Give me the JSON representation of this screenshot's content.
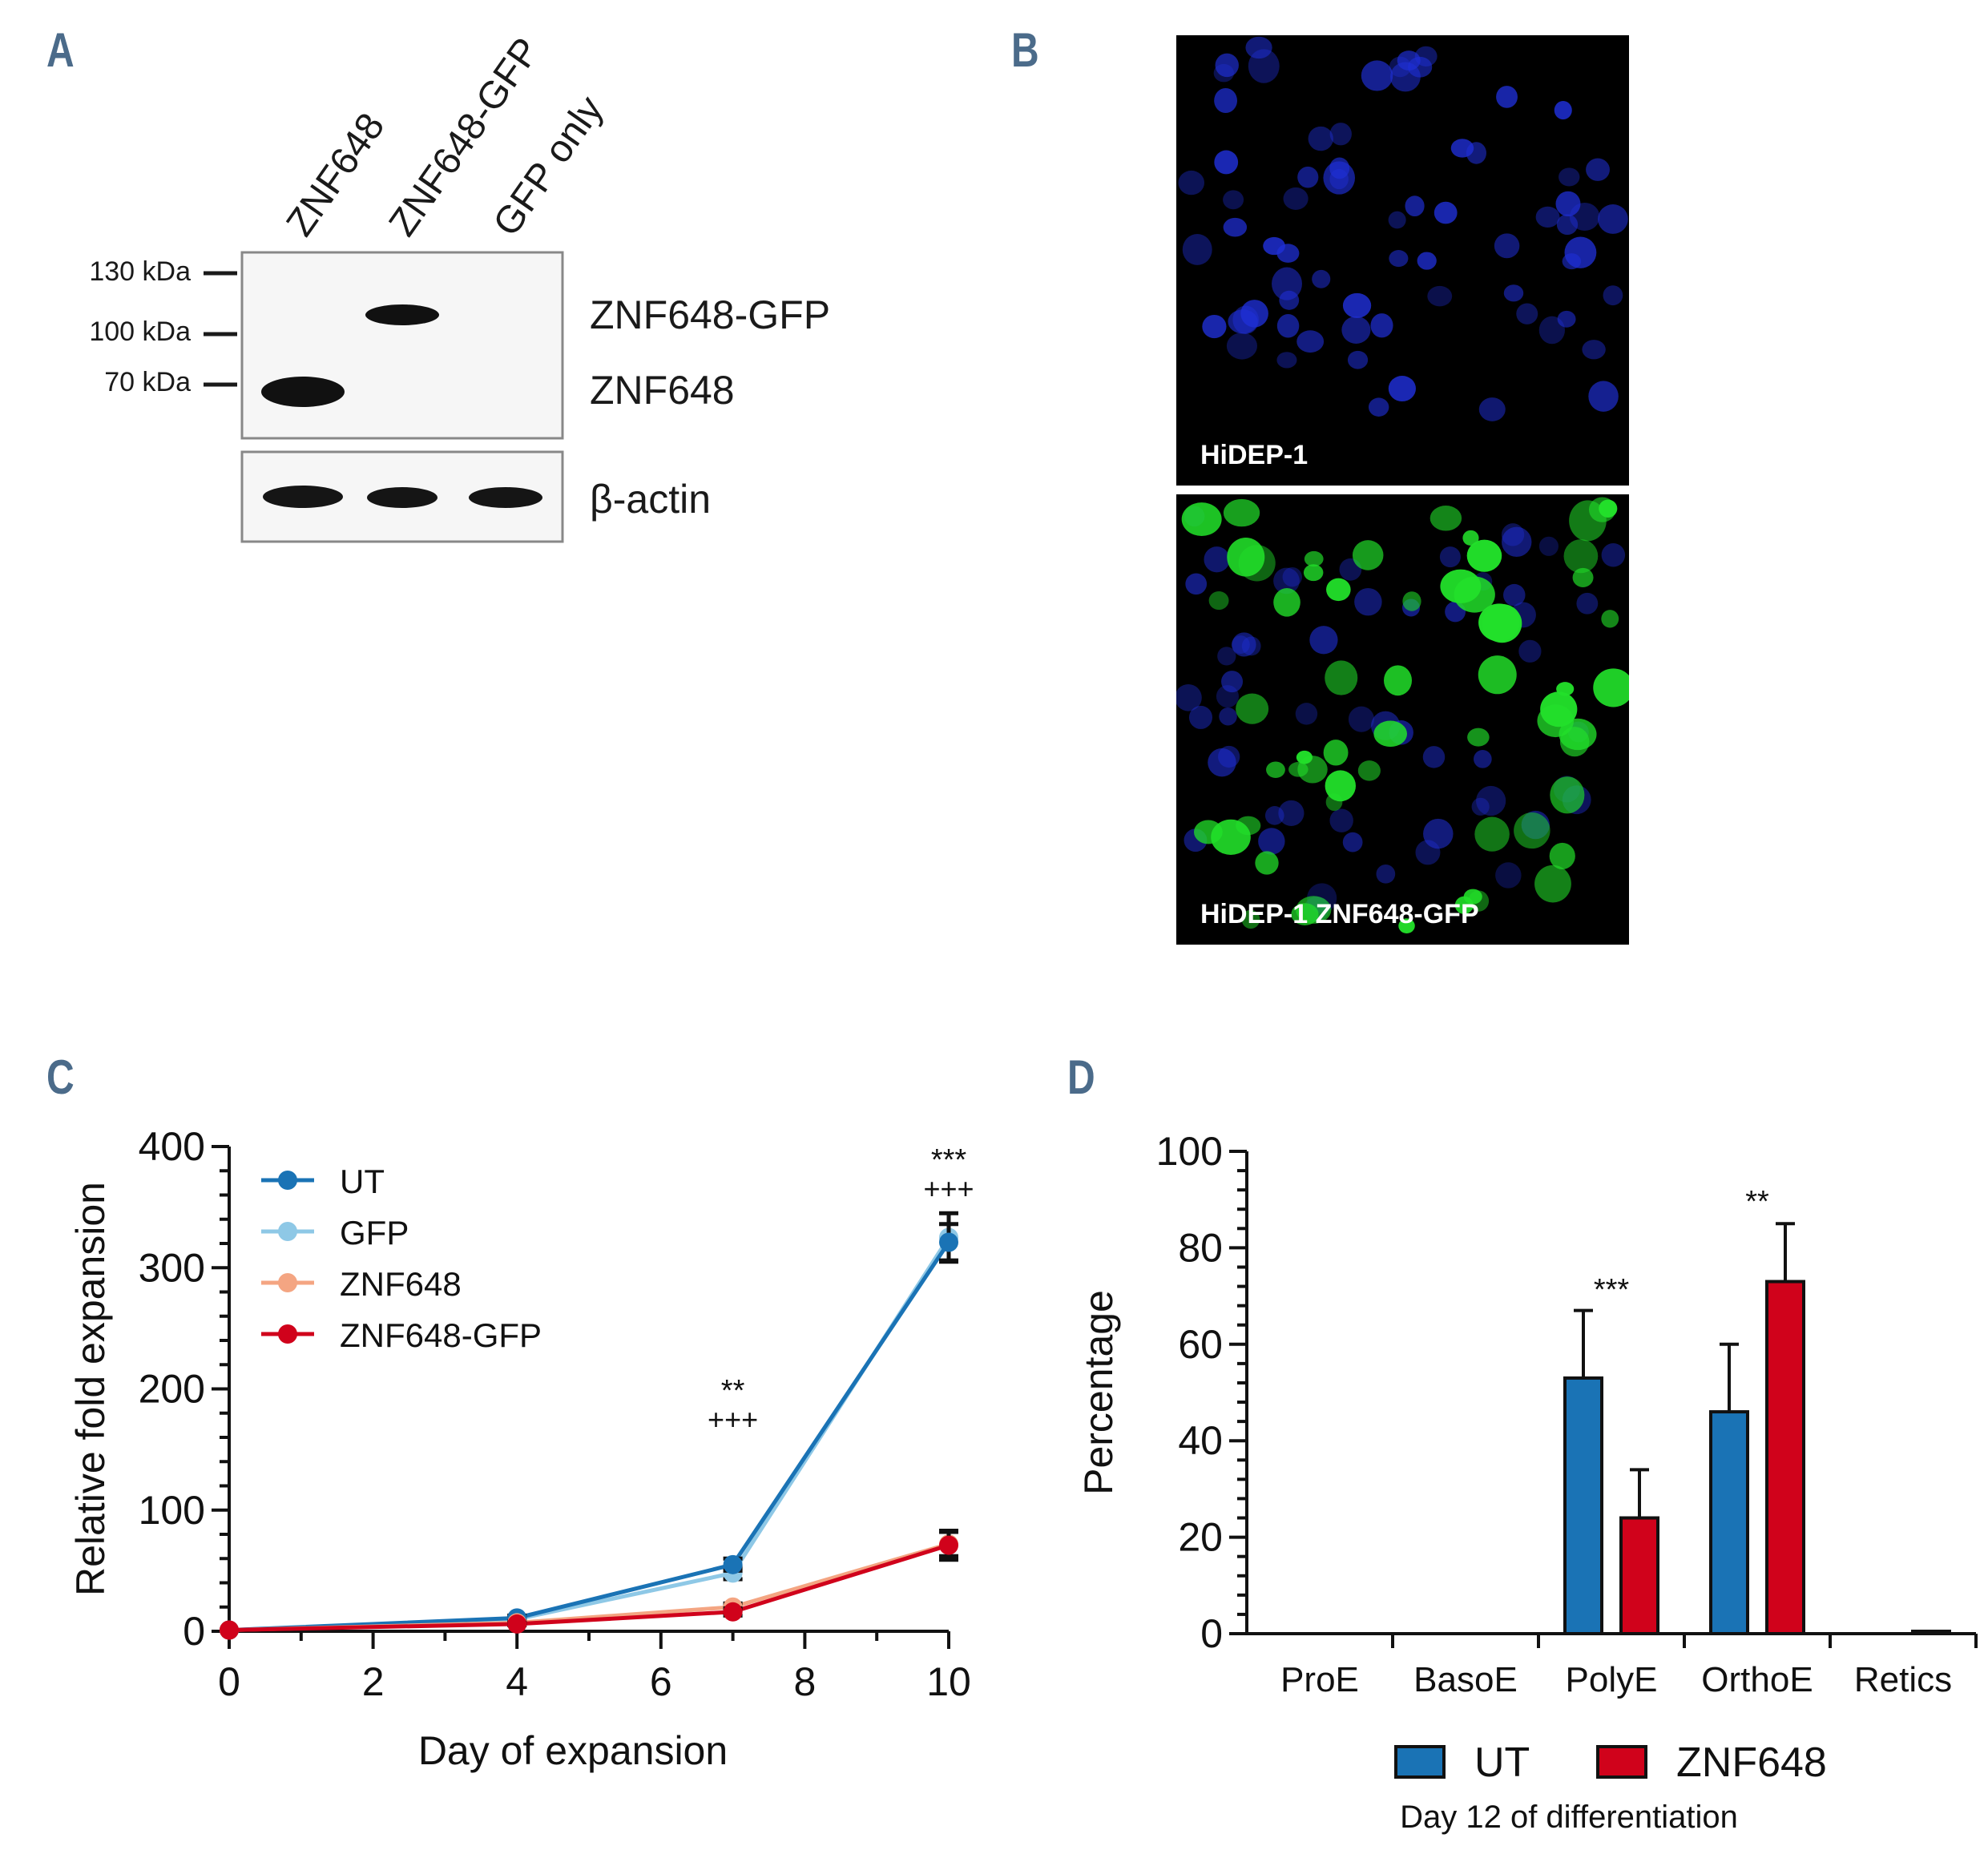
{
  "panels": {
    "a": "A",
    "b": "B",
    "c": "C",
    "d": "D"
  },
  "western_blot": {
    "lanes": [
      "ZNF648",
      "ZNF648-GFP",
      "GFP only"
    ],
    "markers": [
      "130 kDa",
      "100 kDa",
      "70 kDa"
    ],
    "band_labels": [
      "ZNF648-GFP",
      "ZNF648"
    ],
    "loading_control": "β-actin"
  },
  "microscopy": {
    "top_label": "HiDEP-1",
    "bottom_label": "HiDEP-1 ZNF648-GFP",
    "colors": {
      "background": "#000000",
      "nuclei": "#1f2fd6",
      "gfp": "#22e02a"
    }
  },
  "chart_data": [
    {
      "id": "C",
      "type": "line",
      "xlabel": "Day of expansion",
      "ylabel": "Relative fold expansion",
      "x": [
        0,
        4,
        7,
        10
      ],
      "xlim": [
        0,
        10
      ],
      "ylim": [
        0,
        400
      ],
      "xticks": [
        "0",
        "2",
        "4",
        "6",
        "8",
        "10"
      ],
      "yticks": [
        "0",
        "100",
        "200",
        "300",
        "400"
      ],
      "series": [
        {
          "name": "UT",
          "color": "#1a73b5",
          "values": [
            1,
            11,
            55,
            321
          ],
          "errors": [
            0,
            2,
            5,
            15
          ]
        },
        {
          "name": "GFP",
          "color": "#8ec8e6",
          "values": [
            1,
            10,
            48,
            325
          ],
          "errors": [
            0,
            2,
            5,
            20
          ]
        },
        {
          "name": "ZNF648",
          "color": "#f4a582",
          "values": [
            1,
            7,
            20,
            72
          ],
          "errors": [
            0,
            1,
            3,
            10
          ]
        },
        {
          "name": "ZNF648-GFP",
          "color": "#d0021b",
          "values": [
            1,
            6,
            16,
            71
          ],
          "errors": [
            0,
            1,
            3,
            12
          ]
        }
      ],
      "annotations": [
        {
          "x": 7,
          "line1": "**",
          "line2": "+++"
        },
        {
          "x": 10,
          "line1": "***",
          "line2": "+++"
        }
      ]
    },
    {
      "id": "D",
      "type": "bar",
      "ylabel": "Percentage",
      "caption": "Day 12 of differentiation",
      "categories": [
        "ProE",
        "BasoE",
        "PolyE",
        "OrthoE",
        "Retics"
      ],
      "ylim": [
        0,
        100
      ],
      "yticks": [
        "0",
        "20",
        "40",
        "60",
        "80",
        "100"
      ],
      "series": [
        {
          "name": "UT",
          "color": "#1a73b5",
          "values": [
            0,
            0,
            53,
            46,
            0
          ],
          "errors": [
            0,
            0,
            14,
            14,
            0
          ]
        },
        {
          "name": "ZNF648",
          "color": "#d0021b",
          "values": [
            0,
            0,
            24,
            73,
            0.5
          ],
          "errors": [
            0,
            0,
            10,
            12,
            0
          ]
        }
      ],
      "annotations": [
        {
          "category": "PolyE",
          "text": "***"
        },
        {
          "category": "OrthoE",
          "text": "**"
        }
      ]
    }
  ]
}
